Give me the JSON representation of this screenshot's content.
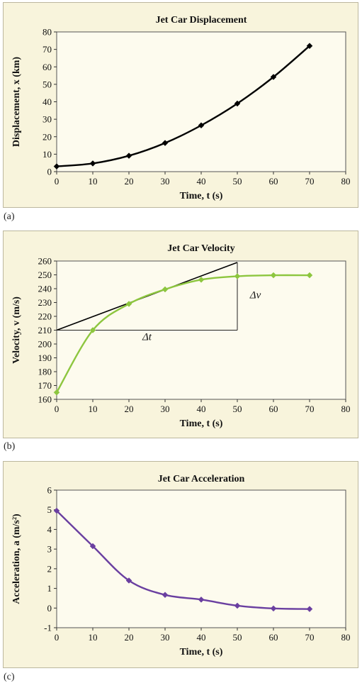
{
  "panels": [
    {
      "label": "(a)"
    },
    {
      "label": "(b)"
    },
    {
      "label": "(c)"
    }
  ],
  "chart_data": [
    {
      "type": "line",
      "title": "Jet Car Displacement",
      "xlabel": "Time, t (s)",
      "ylabel": "Displacement, x (km)",
      "xlim": [
        0,
        80
      ],
      "ylim": [
        0,
        80
      ],
      "xticks": [
        0,
        10,
        20,
        30,
        40,
        50,
        60,
        70,
        80
      ],
      "yticks": [
        0,
        10,
        20,
        30,
        40,
        50,
        60,
        70,
        80
      ],
      "grid": false,
      "series": [
        {
          "color": "#000000",
          "marker": "diamond",
          "x": [
            0,
            10,
            20,
            30,
            40,
            50,
            60,
            70
          ],
          "y": [
            3,
            4.7,
            9.1,
            16.4,
            26.5,
            39,
            54.2,
            72
          ]
        }
      ]
    },
    {
      "type": "line",
      "title": "Jet Car Velocity",
      "xlabel": "Time, t (s)",
      "ylabel": "Velocity, v (m/s)",
      "xlim": [
        0,
        80
      ],
      "ylim": [
        160,
        260
      ],
      "xticks": [
        0,
        10,
        20,
        30,
        40,
        50,
        60,
        70,
        80
      ],
      "yticks": [
        160,
        170,
        180,
        190,
        200,
        210,
        220,
        230,
        240,
        250,
        260
      ],
      "grid": false,
      "series": [
        {
          "color": "#8dc63f",
          "marker": "diamond",
          "x": [
            0,
            10,
            20,
            30,
            40,
            50,
            60,
            70
          ],
          "y": [
            165,
            210,
            229,
            239.5,
            246.5,
            249,
            249.7,
            249.7
          ]
        }
      ],
      "tangent": {
        "color": "#000000",
        "x": [
          0,
          50
        ],
        "y": [
          210,
          259
        ]
      },
      "annotations": {
        "dt": {
          "text": "Δt",
          "x": 25,
          "y": 207
        },
        "dv": {
          "text": "Δv",
          "x": 55,
          "y": 233
        }
      }
    },
    {
      "type": "line",
      "title": "Jet Car Acceleration",
      "xlabel": "Time, t (s)",
      "ylabel": "Acceleration, a (m/s²)",
      "xlim": [
        0,
        80
      ],
      "ylim": [
        -1,
        6
      ],
      "xticks": [
        0,
        10,
        20,
        30,
        40,
        50,
        60,
        70,
        80
      ],
      "yticks": [
        -1,
        0,
        1,
        2,
        3,
        4,
        5,
        6
      ],
      "grid": false,
      "series": [
        {
          "color": "#6a3fa0",
          "marker": "diamond",
          "x": [
            0,
            10,
            20,
            30,
            40,
            50,
            60,
            70
          ],
          "y": [
            4.95,
            3.15,
            1.4,
            0.67,
            0.43,
            0.12,
            -0.02,
            -0.05
          ]
        }
      ]
    }
  ]
}
